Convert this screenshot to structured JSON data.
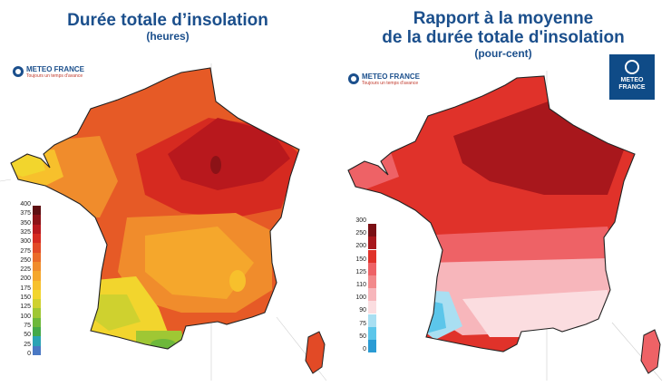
{
  "left": {
    "title": "Durée totale d’insolation",
    "subtitle": "(heures)",
    "logo": {
      "name": "METEO FRANCE",
      "tagline": "Toujours un temps d'avance"
    },
    "legend": {
      "labels": [
        "400",
        "375",
        "350",
        "325",
        "300",
        "275",
        "250",
        "225",
        "200",
        "175",
        "150",
        "125",
        "100",
        "75",
        "50",
        "25",
        "0"
      ],
      "colors": [
        "#5e0f12",
        "#8c1217",
        "#b8181d",
        "#d62a20",
        "#e24a26",
        "#ea6b28",
        "#f08c2c",
        "#f5a72c",
        "#f7c02c",
        "#f2d52d",
        "#cfd12f",
        "#9fc734",
        "#6db83b",
        "#43a94a",
        "#2aa3b5",
        "#4a78c4"
      ]
    }
  },
  "right": {
    "title_line1": "Rapport à la moyenne",
    "title_line2": "de la durée totale d'insolation",
    "subtitle": "(pour-cent)",
    "logo": {
      "name": "METEO FRANCE",
      "tagline": "Toujours un temps d'avance"
    },
    "badge": {
      "line1": "METEO",
      "line2": "FRANCE"
    },
    "legend": {
      "labels": [
        "300",
        "250",
        "200",
        "150",
        "125",
        "110",
        "100",
        "90",
        "75",
        "50",
        "0"
      ],
      "colors": [
        "#7a0f14",
        "#a8171c",
        "#e0322a",
        "#ee6266",
        "#f2898b",
        "#f7b6bb",
        "#fbdde0",
        "#a9dff2",
        "#5cc6ea",
        "#2a9bd4"
      ]
    }
  }
}
